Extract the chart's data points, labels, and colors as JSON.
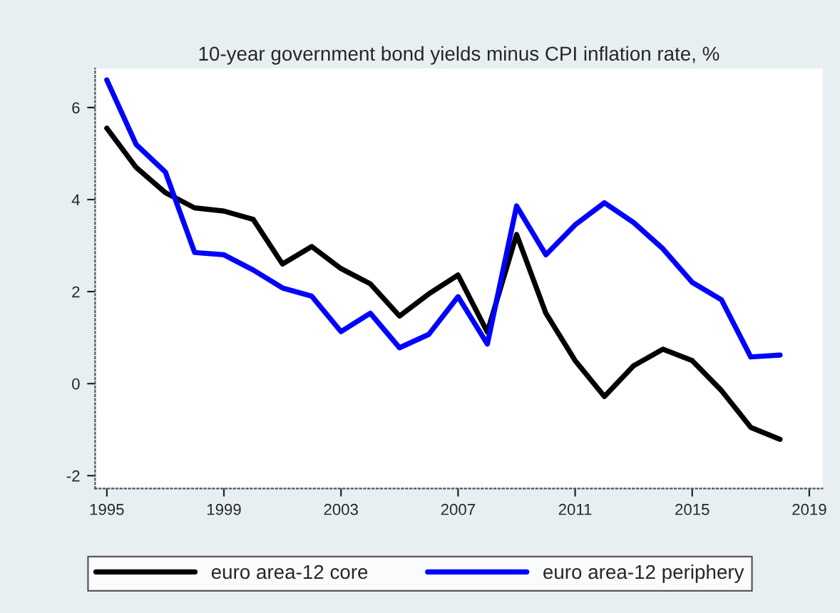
{
  "chart_data": {
    "type": "line",
    "title": "10-year government bond yields minus CPI inflation rate, %",
    "x": [
      1995,
      1996,
      1997,
      1998,
      1999,
      2000,
      2001,
      2002,
      2003,
      2004,
      2005,
      2006,
      2007,
      2008,
      2009,
      2010,
      2011,
      2012,
      2013,
      2014,
      2015,
      2016,
      2017,
      2018
    ],
    "series": [
      {
        "name": "euro area-12 core",
        "color": "#000000",
        "values": [
          5.55,
          4.7,
          4.15,
          3.82,
          3.75,
          3.57,
          2.6,
          2.98,
          2.5,
          2.17,
          1.47,
          1.95,
          2.36,
          1.12,
          3.24,
          1.53,
          0.5,
          -0.28,
          0.39,
          0.75,
          0.5,
          -0.15,
          -0.95,
          -1.21
        ]
      },
      {
        "name": "euro area-12 periphery",
        "color": "#0000ff",
        "values": [
          6.6,
          5.2,
          4.6,
          2.85,
          2.8,
          2.47,
          2.08,
          1.9,
          1.13,
          1.53,
          0.78,
          1.07,
          1.89,
          0.86,
          3.86,
          2.8,
          3.45,
          3.93,
          3.5,
          2.93,
          2.2,
          1.82,
          0.58,
          0.62
        ]
      }
    ],
    "xlim": [
      1994.6,
      2019.45
    ],
    "xticks": [
      1995,
      1999,
      2003,
      2007,
      2011,
      2015,
      2019
    ],
    "ylim": [
      -2.28,
      6.85
    ],
    "yticks": [
      -2,
      0,
      2,
      4,
      6
    ],
    "grid": false,
    "legend": "bottom",
    "line_style": "solid",
    "marker": "none"
  }
}
